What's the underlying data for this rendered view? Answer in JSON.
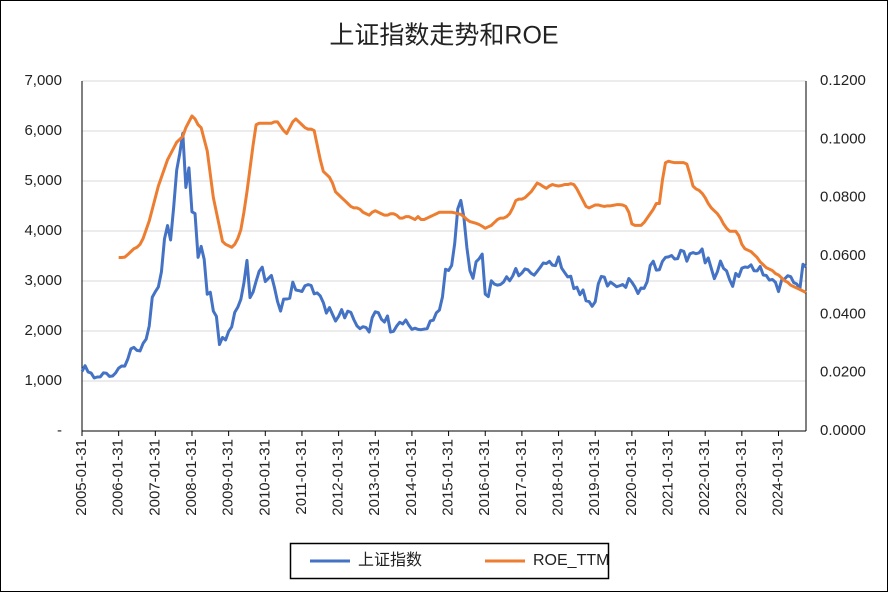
{
  "chart_data": {
    "type": "line",
    "title": "上证指数走势和ROE",
    "categories": [
      "2005-01-31",
      null,
      null,
      null,
      null,
      null,
      null,
      null,
      null,
      null,
      null,
      null,
      "2006-01-31",
      null,
      null,
      null,
      null,
      null,
      null,
      null,
      null,
      null,
      null,
      null,
      "2007-01-31",
      null,
      null,
      null,
      null,
      null,
      null,
      null,
      null,
      null,
      null,
      null,
      "2008-01-31",
      null,
      null,
      null,
      null,
      null,
      null,
      null,
      null,
      null,
      null,
      null,
      "2009-01-31",
      null,
      null,
      null,
      null,
      null,
      null,
      null,
      null,
      null,
      null,
      null,
      "2010-01-31",
      null,
      null,
      null,
      null,
      null,
      null,
      null,
      null,
      null,
      null,
      null,
      "2011-01-31",
      null,
      null,
      null,
      null,
      null,
      null,
      null,
      null,
      null,
      null,
      null,
      "2012-01-31",
      null,
      null,
      null,
      null,
      null,
      null,
      null,
      null,
      null,
      null,
      null,
      "2013-01-31",
      null,
      null,
      null,
      null,
      null,
      null,
      null,
      null,
      null,
      null,
      null,
      "2014-01-31",
      null,
      null,
      null,
      null,
      null,
      null,
      null,
      null,
      null,
      null,
      null,
      "2015-01-31",
      null,
      null,
      null,
      null,
      null,
      null,
      null,
      null,
      null,
      null,
      null,
      "2016-01-31",
      null,
      null,
      null,
      null,
      null,
      null,
      null,
      null,
      null,
      null,
      null,
      "2017-01-31",
      null,
      null,
      null,
      null,
      null,
      null,
      null,
      null,
      null,
      null,
      null,
      "2018-01-31",
      null,
      null,
      null,
      null,
      null,
      null,
      null,
      null,
      null,
      null,
      null,
      "2019-01-31",
      null,
      null,
      null,
      null,
      null,
      null,
      null,
      null,
      null,
      null,
      null,
      "2020-01-31",
      null,
      null,
      null,
      null,
      null,
      null,
      null,
      null,
      null,
      null,
      null,
      "2021-01-31",
      null,
      null,
      null,
      null,
      null,
      null,
      null,
      null,
      null,
      null,
      null,
      "2022-01-31",
      null,
      null,
      null,
      null,
      null,
      null,
      null,
      null,
      null,
      null,
      null,
      "2023-01-31",
      null,
      null,
      null,
      null,
      null,
      null,
      null,
      null,
      null,
      null,
      null,
      "2024-01-31",
      null,
      null,
      null,
      null,
      null,
      null,
      null,
      null,
      null
    ],
    "series": [
      {
        "name": "上证指数",
        "color": "#4472c4",
        "values": [
          1191,
          1306,
          1181,
          1159,
          1060,
          1080,
          1083,
          1162,
          1155,
          1092,
          1099,
          1161,
          1258,
          1299,
          1298,
          1440,
          1642,
          1672,
          1612,
          1601,
          1752,
          1837,
          2099,
          2675,
          2786,
          2881,
          3183,
          3841,
          4109,
          3820,
          4471,
          5218,
          5552,
          5954,
          4871,
          5262,
          4383,
          4348,
          3472,
          3693,
          3433,
          2736,
          2775,
          2397,
          2293,
          1729,
          1871,
          1821,
          1991,
          2082,
          2373,
          2477,
          2633,
          2959,
          3412,
          2667,
          2779,
          2996,
          3195,
          3277,
          2989,
          3051,
          3110,
          2870,
          2592,
          2398,
          2638,
          2639,
          2656,
          2978,
          2820,
          2808,
          2790,
          2905,
          2928,
          2911,
          2743,
          2762,
          2701,
          2568,
          2359,
          2469,
          2333,
          2199,
          2293,
          2428,
          2263,
          2397,
          2373,
          2225,
          2103,
          2047,
          2086,
          2069,
          1980,
          2269,
          2385,
          2366,
          2237,
          2178,
          2301,
          1979,
          1994,
          2098,
          2175,
          2141,
          2220,
          2116,
          2033,
          2056,
          2033,
          2026,
          2039,
          2048,
          2202,
          2217,
          2364,
          2420,
          2683,
          3235,
          3210,
          3310,
          3748,
          4442,
          4612,
          4277,
          3664,
          3206,
          3053,
          3383,
          3445,
          3539,
          2738,
          2688,
          3004,
          2938,
          2917,
          2930,
          2979,
          3085,
          3005,
          3100,
          3250,
          3104,
          3159,
          3242,
          3223,
          3155,
          3117,
          3192,
          3273,
          3361,
          3349,
          3393,
          3317,
          3307,
          3481,
          3259,
          3169,
          3082,
          3095,
          2847,
          2876,
          2725,
          2821,
          2603,
          2588,
          2494,
          2585,
          2941,
          3091,
          3078,
          2899,
          2979,
          2933,
          2886,
          2905,
          2929,
          2872,
          3050,
          2977,
          2880,
          2750,
          2860,
          2852,
          2985,
          3310,
          3396,
          3218,
          3225,
          3392,
          3473,
          3483,
          3509,
          3441,
          3447,
          3615,
          3591,
          3397,
          3544,
          3568,
          3547,
          3564,
          3640,
          3362,
          3462,
          3252,
          3047,
          3186,
          3399,
          3253,
          3202,
          3024,
          2893,
          3151,
          3089,
          3256,
          3280,
          3273,
          3323,
          3205,
          3202,
          3291,
          3120,
          3110,
          3018,
          3030,
          2975,
          2789,
          3015,
          3041,
          3105,
          3087,
          2967,
          2939,
          2842,
          3336,
          3279
        ]
      },
      {
        "name": "ROE_TTM",
        "color": "#ed7d31",
        "axis": "y2",
        "values": [
          null,
          null,
          null,
          null,
          null,
          null,
          null,
          null,
          null,
          null,
          null,
          null,
          0.0595,
          0.0595,
          0.0596,
          0.0605,
          0.0615,
          0.0625,
          0.063,
          0.064,
          0.066,
          0.069,
          0.072,
          0.076,
          0.08,
          0.084,
          0.087,
          0.09,
          0.093,
          0.095,
          0.097,
          0.099,
          0.1,
          0.101,
          0.104,
          0.106,
          0.108,
          0.107,
          0.105,
          0.104,
          0.1,
          0.096,
          0.088,
          0.08,
          0.075,
          0.07,
          0.065,
          0.064,
          0.0635,
          0.063,
          0.064,
          0.066,
          0.069,
          0.075,
          0.082,
          0.09,
          0.098,
          0.105,
          0.1055,
          0.1055,
          0.1055,
          0.1055,
          0.1055,
          0.106,
          0.106,
          0.1045,
          0.103,
          0.102,
          0.104,
          0.106,
          0.107,
          0.106,
          0.105,
          0.104,
          0.1035,
          0.1035,
          0.103,
          0.098,
          0.093,
          0.089,
          0.088,
          0.087,
          0.085,
          0.082,
          0.081,
          0.08,
          0.079,
          0.078,
          0.077,
          0.0765,
          0.0765,
          0.076,
          0.075,
          0.0745,
          0.074,
          0.075,
          0.0755,
          0.075,
          0.0745,
          0.074,
          0.074,
          0.0745,
          0.0745,
          0.074,
          0.073,
          0.073,
          0.0735,
          0.0735,
          0.073,
          0.0725,
          0.0735,
          0.0725,
          0.0725,
          0.073,
          0.0735,
          0.074,
          0.0745,
          0.075,
          0.075,
          0.075,
          0.075,
          0.075,
          0.0748,
          0.0745,
          0.0743,
          0.0735,
          0.0725,
          0.0718,
          0.0715,
          0.0712,
          0.0708,
          0.0702,
          0.0695,
          0.07,
          0.0705,
          0.0715,
          0.0725,
          0.073,
          0.073,
          0.0735,
          0.0745,
          0.0765,
          0.079,
          0.0795,
          0.0795,
          0.08,
          0.081,
          0.082,
          0.0835,
          0.085,
          0.0845,
          0.0838,
          0.0832,
          0.084,
          0.0845,
          0.0842,
          0.084,
          0.0842,
          0.0845,
          0.0845,
          0.0848,
          0.0845,
          0.083,
          0.081,
          0.079,
          0.077,
          0.0765,
          0.077,
          0.0775,
          0.0775,
          0.0772,
          0.077,
          0.0772,
          0.0772,
          0.0774,
          0.0776,
          0.0776,
          0.0775,
          0.077,
          0.075,
          0.071,
          0.0705,
          0.0705,
          0.0705,
          0.0715,
          0.073,
          0.0745,
          0.076,
          0.078,
          0.078,
          0.086,
          0.092,
          0.0925,
          0.0922,
          0.092,
          0.092,
          0.092,
          0.092,
          0.0915,
          0.088,
          0.084,
          0.083,
          0.0825,
          0.0815,
          0.08,
          0.078,
          0.0765,
          0.0755,
          0.0745,
          0.073,
          0.071,
          0.0695,
          0.0685,
          0.0685,
          0.0685,
          0.067,
          0.064,
          0.0625,
          0.062,
          0.0615,
          0.0605,
          0.0595,
          0.058,
          0.057,
          0.056,
          0.0555,
          0.055,
          0.054,
          0.0535,
          0.0525,
          0.0515,
          0.051,
          0.05,
          0.0495,
          0.049,
          0.0485,
          0.048,
          0.0475
        ]
      }
    ],
    "ylim": [
      0,
      7000
    ],
    "yticks": [
      {
        "value": 0,
        "label": "-"
      },
      {
        "value": 1000,
        "label": "1,000"
      },
      {
        "value": 2000,
        "label": "2,000"
      },
      {
        "value": 3000,
        "label": "3,000"
      },
      {
        "value": 4000,
        "label": "4,000"
      },
      {
        "value": 5000,
        "label": "5,000"
      },
      {
        "value": 6000,
        "label": "6,000"
      },
      {
        "value": 7000,
        "label": "7,000"
      }
    ],
    "y2lim": [
      0,
      0.12
    ],
    "y2ticks": [
      {
        "value": 0,
        "label": "0.0000"
      },
      {
        "value": 0.02,
        "label": "0.0200"
      },
      {
        "value": 0.04,
        "label": "0.0400"
      },
      {
        "value": 0.06,
        "label": "0.0600"
      },
      {
        "value": 0.08,
        "label": "0.0800"
      },
      {
        "value": 0.1,
        "label": "0.1000"
      },
      {
        "value": 0.12,
        "label": "0.1200"
      }
    ],
    "grid": true
  }
}
